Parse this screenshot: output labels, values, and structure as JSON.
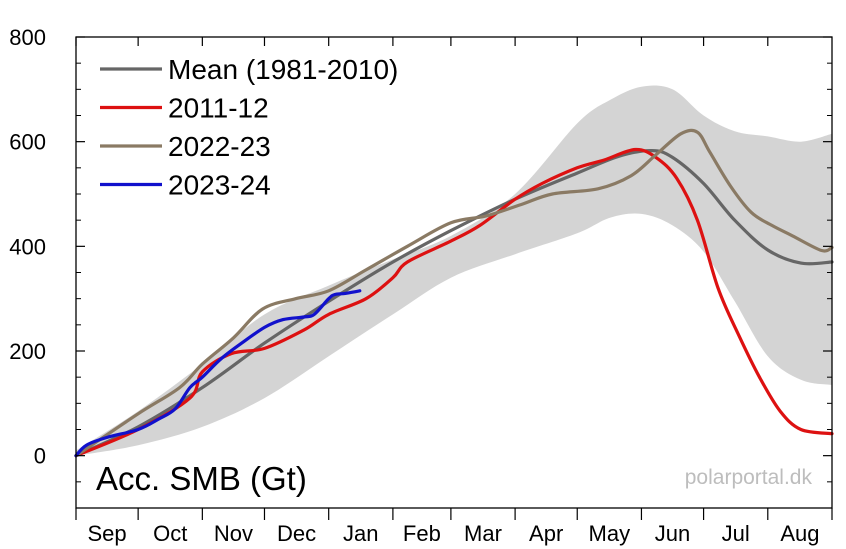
{
  "chart_data": {
    "type": "line",
    "title": "",
    "ylabel": "Acc. SMB (Gt)",
    "xlabel": "",
    "credit": "polarportal.dk",
    "ylim": [
      -100,
      800
    ],
    "yticks": [
      0,
      200,
      400,
      600,
      800
    ],
    "xlim": [
      0,
      365
    ],
    "months": [
      {
        "label": "Sep",
        "start": 0,
        "end": 30
      },
      {
        "label": "Oct",
        "start": 30,
        "end": 61
      },
      {
        "label": "Nov",
        "start": 61,
        "end": 91
      },
      {
        "label": "Dec",
        "start": 91,
        "end": 122
      },
      {
        "label": "Jan",
        "start": 122,
        "end": 153
      },
      {
        "label": "Feb",
        "start": 153,
        "end": 181
      },
      {
        "label": "Mar",
        "start": 181,
        "end": 212
      },
      {
        "label": "Apr",
        "start": 212,
        "end": 242
      },
      {
        "label": "May",
        "start": 242,
        "end": 273
      },
      {
        "label": "Jun",
        "start": 273,
        "end": 303
      },
      {
        "label": "Jul",
        "start": 303,
        "end": 334
      },
      {
        "label": "Aug",
        "start": 334,
        "end": 365
      }
    ],
    "legend_position": "top-left",
    "band": {
      "x": [
        0,
        30,
        61,
        91,
        122,
        153,
        181,
        212,
        242,
        258,
        273,
        288,
        303,
        318,
        334,
        350,
        365
      ],
      "lower": [
        0,
        20,
        55,
        110,
        190,
        270,
        340,
        385,
        425,
        455,
        462,
        440,
        390,
        295,
        190,
        145,
        135
      ],
      "upper": [
        10,
        85,
        175,
        270,
        325,
        375,
        420,
        500,
        635,
        680,
        705,
        700,
        650,
        620,
        610,
        600,
        615
      ]
    },
    "series": [
      {
        "name": "Mean (1981-2010)",
        "color": "#666666",
        "x": [
          0,
          30,
          61,
          91,
          122,
          153,
          181,
          212,
          242,
          262,
          278,
          288,
          303,
          318,
          334,
          350,
          365
        ],
        "y": [
          0,
          55,
          130,
          215,
          295,
          370,
          430,
          490,
          540,
          572,
          583,
          570,
          520,
          450,
          393,
          368,
          370
        ]
      },
      {
        "name": "2011-12",
        "color": "#dd1111",
        "x": [
          0,
          30,
          55,
          61,
          75,
          91,
          110,
          122,
          140,
          153,
          160,
          181,
          195,
          212,
          225,
          242,
          255,
          270,
          280,
          290,
          300,
          310,
          320,
          330,
          340,
          350,
          365
        ],
        "y": [
          0,
          50,
          110,
          160,
          195,
          205,
          240,
          270,
          300,
          340,
          370,
          410,
          440,
          490,
          520,
          550,
          565,
          585,
          570,
          530,
          450,
          320,
          230,
          150,
          85,
          50,
          42
        ]
      },
      {
        "name": "2022-23",
        "color": "#8a7a64",
        "x": [
          0,
          30,
          50,
          61,
          76,
          90,
          106,
          122,
          140,
          160,
          181,
          198,
          215,
          230,
          252,
          268,
          280,
          292,
          300,
          306,
          316,
          326,
          336,
          346,
          360,
          365
        ],
        "y": [
          0,
          80,
          130,
          175,
          225,
          280,
          300,
          315,
          355,
          400,
          445,
          458,
          480,
          500,
          510,
          535,
          575,
          615,
          618,
          580,
          515,
          465,
          440,
          420,
          392,
          398
        ]
      },
      {
        "name": "2023-24",
        "color": "#1111cc",
        "x": [
          0,
          5,
          15,
          30,
          40,
          48,
          55,
          61,
          70,
          80,
          91,
          100,
          110,
          115,
          122,
          125,
          130,
          137
        ],
        "y": [
          0,
          20,
          35,
          50,
          70,
          90,
          130,
          150,
          185,
          215,
          245,
          260,
          265,
          270,
          300,
          308,
          310,
          315
        ]
      }
    ]
  }
}
